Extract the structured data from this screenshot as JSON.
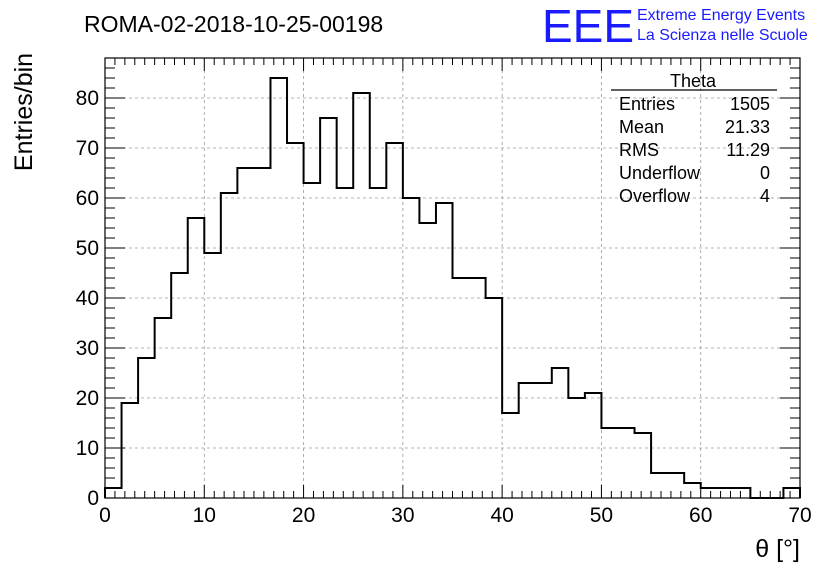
{
  "header": {
    "title": "ROMA-02-2018-10-25-00198"
  },
  "logo": {
    "letters": "EEE",
    "line1": "Extreme Energy Events",
    "line2": "La Scienza nelle Scuole",
    "color": "#1a1aff"
  },
  "stats_box": {
    "name": "Theta",
    "rows": [
      {
        "label": "Entries",
        "value": "1505"
      },
      {
        "label": "Mean",
        "value": "21.33"
      },
      {
        "label": "RMS",
        "value": "11.29"
      },
      {
        "label": "Underflow",
        "value": "0"
      },
      {
        "label": "Overflow",
        "value": "4"
      }
    ]
  },
  "chart_data": {
    "type": "bar",
    "style": "step-histogram",
    "xlabel": "θ [°]",
    "ylabel": "Entries/bin",
    "xlim": [
      0,
      70
    ],
    "ylim": [
      0,
      88
    ],
    "x_ticks": [
      0,
      10,
      20,
      30,
      40,
      50,
      60,
      70
    ],
    "y_ticks": [
      0,
      10,
      20,
      30,
      40,
      50,
      60,
      70,
      80
    ],
    "grid": true,
    "bin_width": 1.6667,
    "bin_edges_start": 0,
    "values": [
      2,
      19,
      28,
      36,
      45,
      56,
      49,
      61,
      66,
      66,
      84,
      71,
      63,
      76,
      62,
      81,
      62,
      71,
      60,
      55,
      59,
      44,
      44,
      40,
      17,
      23,
      23,
      26,
      20,
      21,
      14,
      14,
      13,
      5,
      5,
      3,
      3,
      2,
      2,
      0,
      0,
      0,
      0,
      0,
      0,
      0,
      0,
      0,
      0,
      0,
      0,
      0,
      0,
      0,
      0,
      0,
      0,
      0,
      0,
      0,
      0,
      0,
      0,
      0,
      0,
      0,
      0,
      0,
      0,
      0,
      0
    ],
    "tail": [
      {
        "x0": 58.33,
        "x1": 60.0,
        "y": 0
      },
      {
        "x0": 60.0,
        "x1": 61.67,
        "y": 2
      },
      {
        "x0": 61.67,
        "x1": 63.33,
        "y": 1
      },
      {
        "x0": 63.33,
        "x1": 65.0,
        "y": 0
      },
      {
        "x0": 65.0,
        "x1": 66.67,
        "y": 2
      },
      {
        "x0": 66.67,
        "x1": 68.33,
        "y": 0
      },
      {
        "x0": 68.33,
        "x1": 70.0,
        "y": 2
      }
    ],
    "line_color": "#000000",
    "grid_color": "#9a9a9a"
  }
}
